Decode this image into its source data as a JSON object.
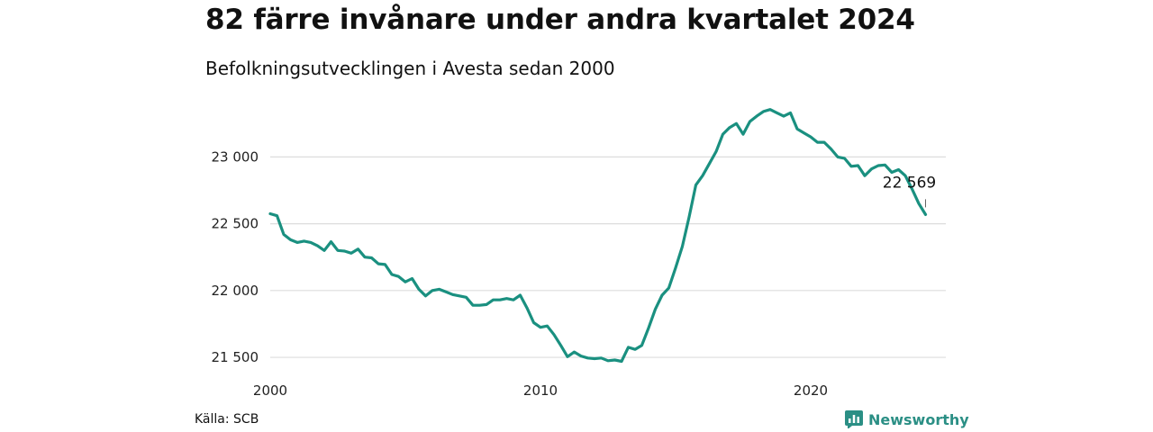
{
  "title": "82 färre invånare under andra kvartalet 2024",
  "subtitle": "Befolkningsutvecklingen i Avesta sedan 2000",
  "source": "Källa: SCB",
  "brand": "Newsworthy",
  "colors": {
    "line": "#1a9080",
    "grid": "#dddddd",
    "brand": "#2b8f85"
  },
  "chart_data": {
    "type": "line",
    "title": "82 färre invånare under andra kvartalet 2024",
    "subtitle": "Befolkningsutvecklingen i Avesta sedan 2000",
    "xlabel": "",
    "ylabel": "",
    "grid": true,
    "xlim": [
      2000,
      2025
    ],
    "ylim": [
      21460,
      23400
    ],
    "y_ticks": [
      21500,
      22000,
      22500,
      23000
    ],
    "y_tick_labels": [
      "21 500",
      "22 000",
      "22 500",
      "23 000"
    ],
    "x_ticks": [
      2000,
      2010,
      2020
    ],
    "x_tick_labels": [
      "2000",
      "2010",
      "2020"
    ],
    "annotation": {
      "text": "22 569",
      "x": 2024.25,
      "y": 22569
    },
    "series": [
      {
        "x": [
          2000.0,
          2000.25,
          2000.5,
          2000.75,
          2001.0,
          2001.25,
          2001.5,
          2001.75,
          2002.0,
          2002.25,
          2002.5,
          2002.75,
          2003.0,
          2003.25,
          2003.5,
          2003.75,
          2004.0,
          2004.25,
          2004.5,
          2004.75,
          2005.0,
          2005.25,
          2005.5,
          2005.75,
          2006.0,
          2006.25,
          2006.5,
          2006.75,
          2007.0,
          2007.25,
          2007.5,
          2007.75,
          2008.0,
          2008.25,
          2008.5,
          2008.75,
          2009.0,
          2009.25,
          2009.5,
          2009.75,
          2010.0,
          2010.25,
          2010.5,
          2010.75,
          2011.0,
          2011.25,
          2011.5,
          2011.75,
          2012.0,
          2012.25,
          2012.5,
          2012.75,
          2013.0,
          2013.25,
          2013.5,
          2013.75,
          2014.0,
          2014.25,
          2014.5,
          2014.75,
          2015.0,
          2015.25,
          2015.5,
          2015.75,
          2016.0,
          2016.25,
          2016.5,
          2016.75,
          2017.0,
          2017.25,
          2017.5,
          2017.75,
          2018.0,
          2018.25,
          2018.5,
          2018.75,
          2019.0,
          2019.25,
          2019.5,
          2019.75,
          2020.0,
          2020.25,
          2020.5,
          2020.75,
          2021.0,
          2021.25,
          2021.5,
          2021.75,
          2022.0,
          2022.25,
          2022.5,
          2022.75,
          2023.0,
          2023.25,
          2023.5,
          2023.75,
          2024.0,
          2024.25
        ],
        "y": [
          22575,
          22560,
          22420,
          22380,
          22360,
          22370,
          22360,
          22335,
          22300,
          22365,
          22300,
          22295,
          22280,
          22310,
          22250,
          22245,
          22200,
          22195,
          22120,
          22105,
          22065,
          22090,
          22010,
          21960,
          22000,
          22010,
          21990,
          21970,
          21960,
          21950,
          21890,
          21890,
          21895,
          21930,
          21930,
          21940,
          21930,
          21965,
          21870,
          21760,
          21725,
          21735,
          21670,
          21590,
          21505,
          21540,
          21510,
          21495,
          21490,
          21495,
          21475,
          21480,
          21470,
          21575,
          21560,
          21590,
          21720,
          21860,
          21965,
          22020,
          22170,
          22330,
          22550,
          22790,
          22860,
          22950,
          23040,
          23170,
          23220,
          23250,
          23170,
          23265,
          23305,
          23340,
          23355,
          23330,
          23305,
          23330,
          23210,
          23180,
          23150,
          23110,
          23110,
          23060,
          23000,
          22990,
          22930,
          22935,
          22860,
          22910,
          22935,
          22940,
          22885,
          22905,
          22860,
          22760,
          22651,
          22569
        ]
      }
    ]
  }
}
